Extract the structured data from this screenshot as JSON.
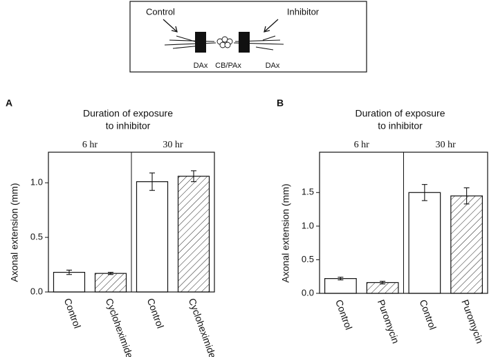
{
  "diagram": {
    "left_label": "Control",
    "right_label": "Inhibitor",
    "compartments": [
      "DAx",
      "CB/PAx",
      "DAx"
    ]
  },
  "chart_data": [
    {
      "type": "bar",
      "panel": "A",
      "title": [
        "Duration of exposure",
        "to inhibitor"
      ],
      "y_label": "Axonal extension  (mm)",
      "groups": [
        "6 hr",
        "30 hr"
      ],
      "categories": [
        "Control",
        "Cycloheximide",
        "Control",
        "Cycloheximide"
      ],
      "values": [
        0.18,
        0.17,
        1.01,
        1.06
      ],
      "errors": [
        0.02,
        0.01,
        0.08,
        0.05
      ],
      "fills": [
        "open",
        "hatched",
        "open",
        "hatched"
      ],
      "ylim": [
        0,
        1.28
      ],
      "yticks": [
        {
          "value": 0,
          "label": "0.0"
        },
        {
          "value": 0.5,
          "label": "0.5"
        },
        {
          "value": 1,
          "label": "1.0"
        }
      ]
    },
    {
      "type": "bar",
      "panel": "B",
      "title": [
        "Duration of exposure",
        "to inhibitor"
      ],
      "y_label": "Axonal extension  (mm)",
      "groups": [
        "6 hr",
        "30 hr"
      ],
      "categories": [
        "Control",
        "Puromycin",
        "Control",
        "Puromycin"
      ],
      "values": [
        0.22,
        0.16,
        1.5,
        1.45
      ],
      "errors": [
        0.02,
        0.02,
        0.12,
        0.12
      ],
      "fills": [
        "open",
        "hatched",
        "open",
        "hatched"
      ],
      "ylim": [
        0,
        2.1
      ],
      "yticks": [
        {
          "value": 0,
          "label": "0.0"
        },
        {
          "value": 0.5,
          "label": "0.5"
        },
        {
          "value": 1,
          "label": "1.0"
        },
        {
          "value": 1.5,
          "label": "1.5"
        }
      ]
    }
  ]
}
